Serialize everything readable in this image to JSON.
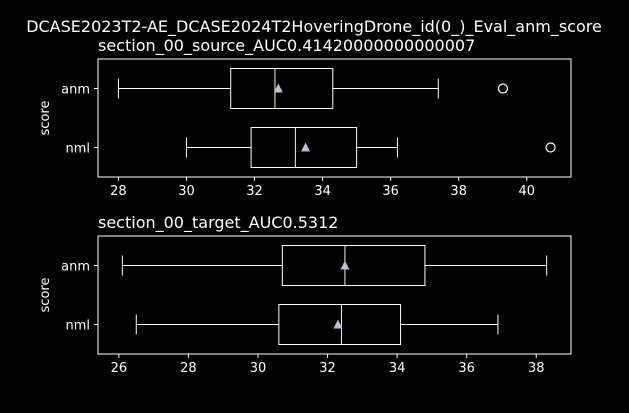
{
  "figure": {
    "suptitle": "DCASE2023T2-AE_DCASE2024T2HoveringDrone_id(0_)_Eval_anm_score"
  },
  "colors": {
    "background": "#000000",
    "foreground": "#ffffff",
    "median": "#ffff99",
    "mean_marker": "#bcbddc"
  },
  "chart_data": [
    {
      "type": "boxplot",
      "orientation": "horizontal",
      "title": "section_00_source_AUC0.41420000000000007",
      "xlabel": "",
      "ylabel": "score",
      "xlim": [
        27.4,
        41.3
      ],
      "xticks": [
        28,
        30,
        32,
        34,
        36,
        38,
        40
      ],
      "categories": [
        "anm",
        "nml"
      ],
      "boxes": [
        {
          "label": "anm",
          "whisker_low": 28.0,
          "q1": 31.3,
          "median": 32.6,
          "q3": 34.3,
          "whisker_high": 37.4,
          "mean": 32.7,
          "outliers": [
            39.3
          ]
        },
        {
          "label": "nml",
          "whisker_low": 30.0,
          "q1": 31.9,
          "median": 33.2,
          "q3": 35.0,
          "whisker_high": 36.2,
          "mean": 33.5,
          "outliers": [
            40.7
          ]
        }
      ]
    },
    {
      "type": "boxplot",
      "orientation": "horizontal",
      "title": "section_00_target_AUC0.5312",
      "xlabel": "",
      "ylabel": "score",
      "xlim": [
        25.4,
        39.0
      ],
      "xticks": [
        26,
        28,
        30,
        32,
        34,
        36,
        38
      ],
      "categories": [
        "anm",
        "nml"
      ],
      "boxes": [
        {
          "label": "anm",
          "whisker_low": 26.1,
          "q1": 30.7,
          "median": 32.5,
          "q3": 34.8,
          "whisker_high": 38.3,
          "mean": 32.5,
          "outliers": []
        },
        {
          "label": "nml",
          "whisker_low": 26.5,
          "q1": 30.6,
          "median": 32.4,
          "q3": 34.1,
          "whisker_high": 36.9,
          "mean": 32.3,
          "outliers": []
        }
      ]
    }
  ]
}
